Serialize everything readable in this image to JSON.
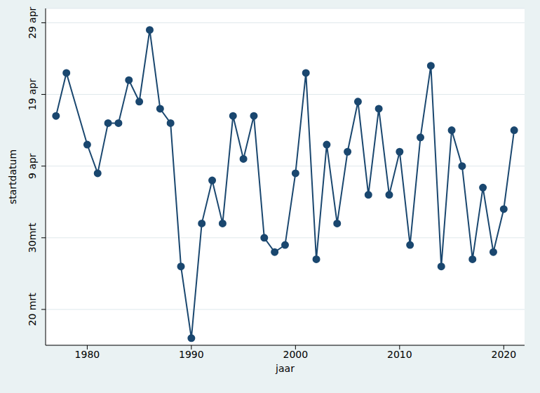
{
  "chart_data": {
    "type": "line",
    "x_label": "jaar",
    "y_label": "startdatum",
    "x": [
      1977,
      1978,
      1980,
      1981,
      1982,
      1983,
      1984,
      1985,
      1986,
      1987,
      1988,
      1989,
      1990,
      1991,
      1992,
      1993,
      1994,
      1995,
      1996,
      1997,
      1998,
      1999,
      2000,
      2001,
      2002,
      2003,
      2004,
      2005,
      2006,
      2007,
      2008,
      2009,
      2010,
      2011,
      2012,
      2013,
      2014,
      2015,
      2016,
      2017,
      2018,
      2019,
      2020,
      2021
    ],
    "values": [
      106,
      112,
      102,
      98,
      105,
      105,
      111,
      108,
      118,
      107,
      105,
      85,
      75,
      91,
      97,
      91,
      106,
      100,
      106,
      89,
      87,
      88,
      98,
      112,
      86,
      102,
      91,
      101,
      108,
      95,
      107,
      95,
      101,
      88,
      103,
      113,
      85,
      104,
      99,
      86,
      96,
      87,
      93,
      104
    ],
    "color": "#1a476f",
    "marker": "circle",
    "xlim": [
      1976,
      2022
    ],
    "xticks": [
      1980,
      1990,
      2000,
      2010,
      2020
    ],
    "ylim": [
      74,
      121
    ],
    "yticks": [
      {
        "value": 79,
        "label": "20 mrt"
      },
      {
        "value": 89,
        "label": "30mrt"
      },
      {
        "value": 99,
        "label": "9 apr"
      },
      {
        "value": 109,
        "label": "19 apr"
      },
      {
        "value": 119,
        "label": "29 apr"
      }
    ],
    "grid": true
  }
}
